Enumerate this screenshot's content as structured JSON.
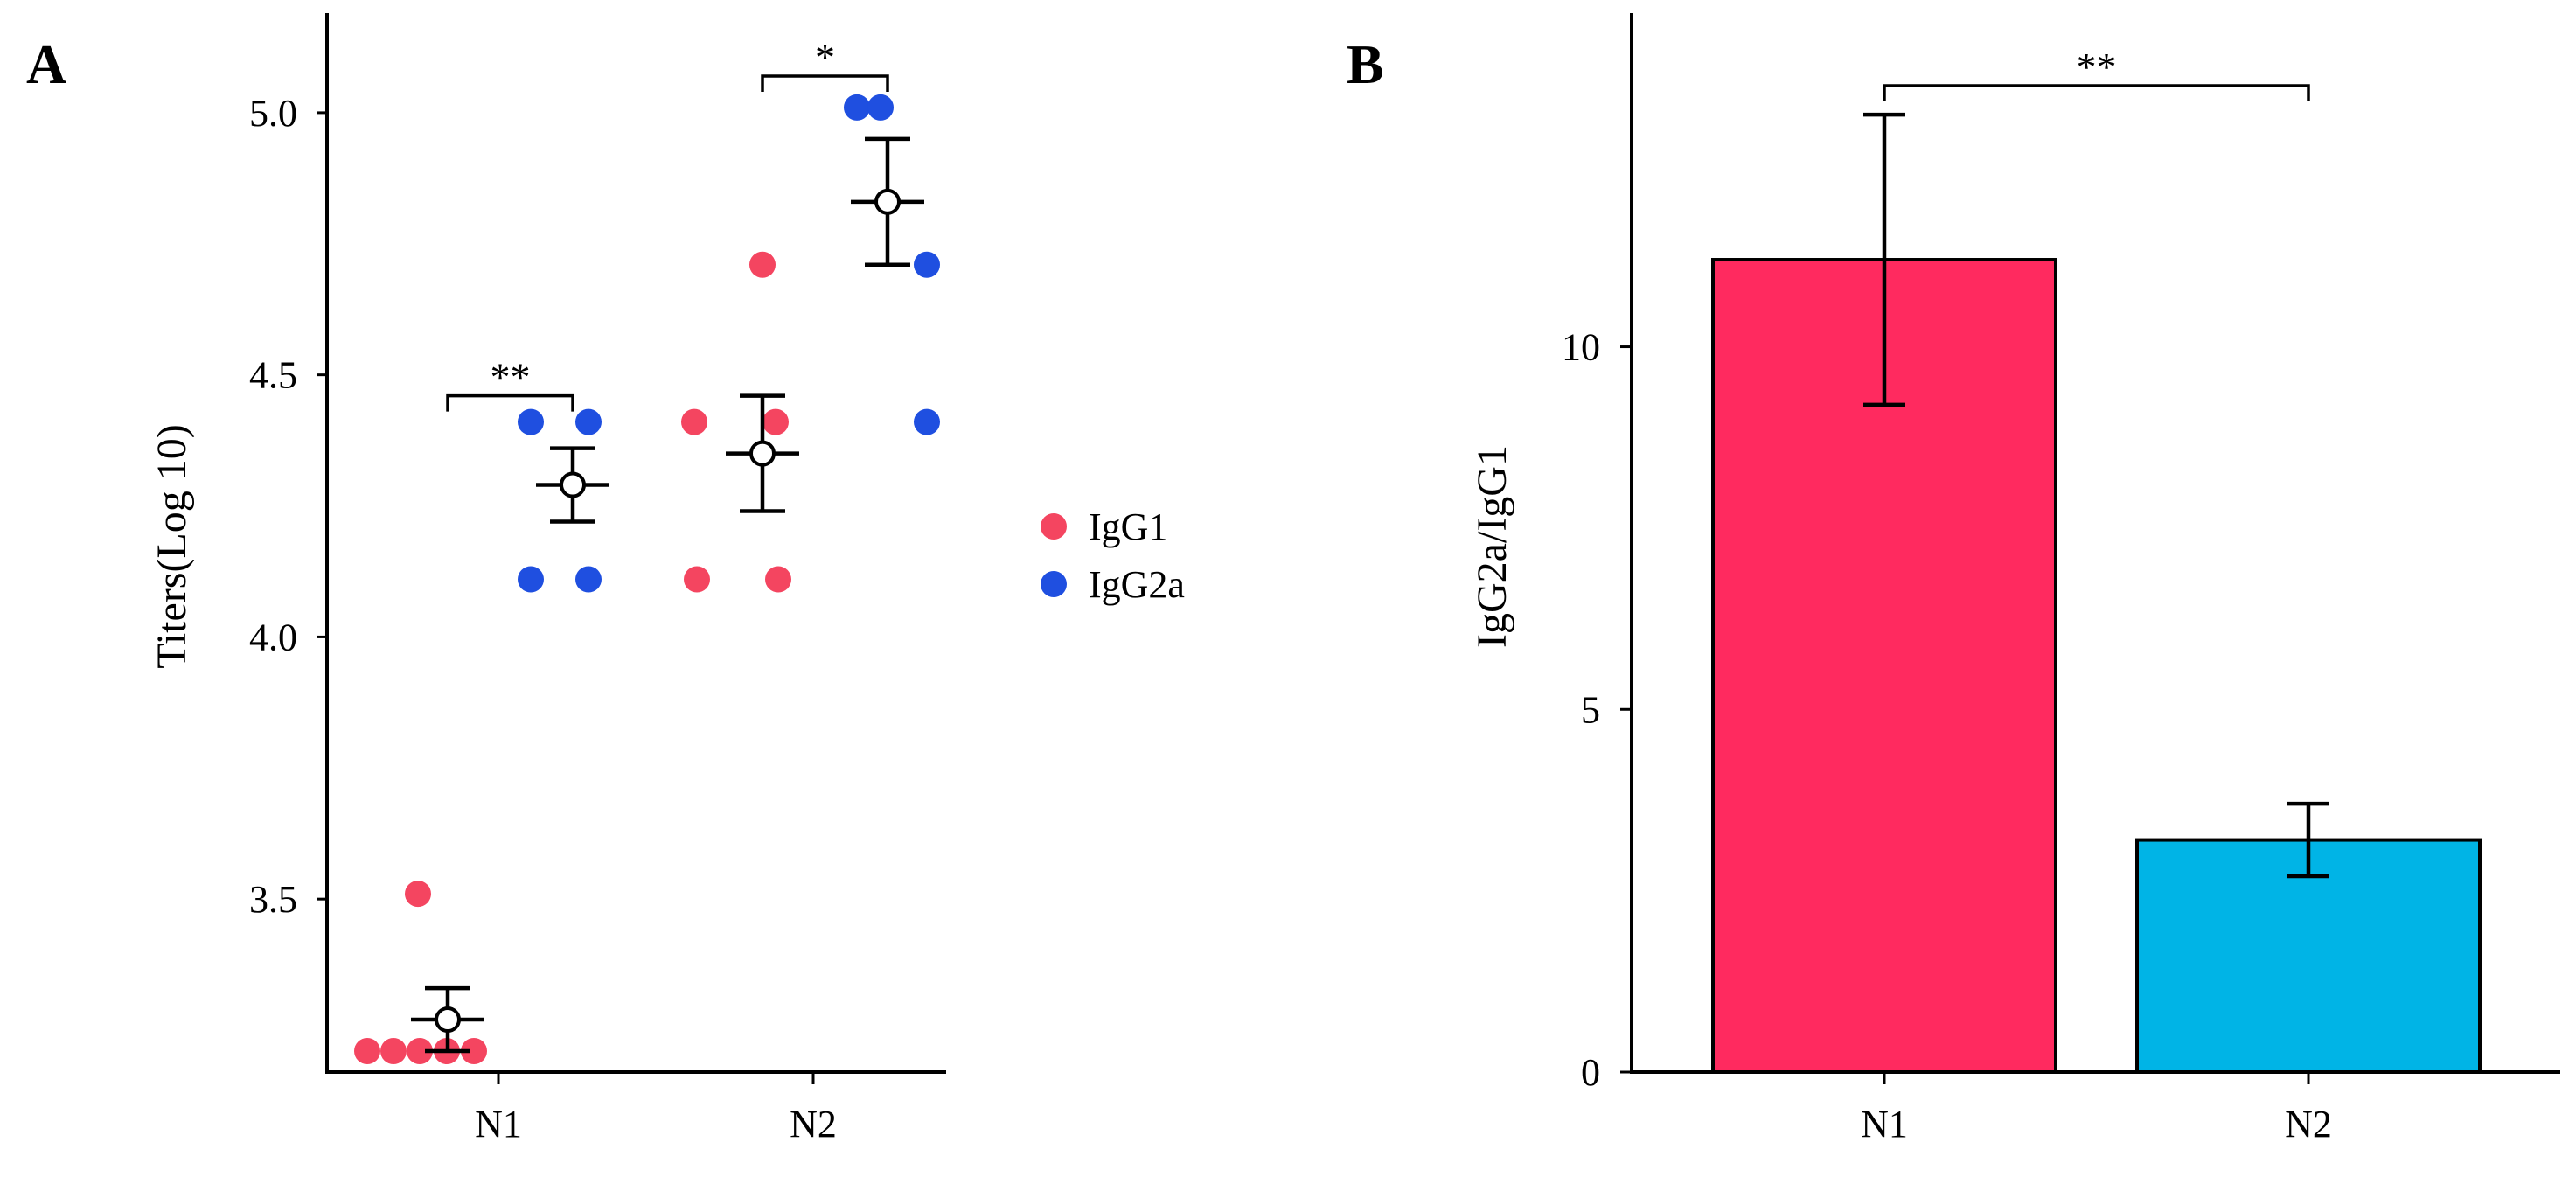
{
  "chart_data": [
    {
      "panel": "A",
      "type": "scatter",
      "ylabel": "Titers(Log 10)",
      "xlabel": "",
      "ylim": [
        3.17,
        5.19
      ],
      "yticks": [
        3.5,
        4.0,
        4.5,
        5.0
      ],
      "ytick_labels": [
        "3.5",
        "4.0",
        "4.5",
        "5.0"
      ],
      "categories": [
        "N1",
        "N2"
      ],
      "legend": {
        "placement": "right",
        "entries": [
          {
            "name": "IgG1",
            "color": "#f44560"
          },
          {
            "name": "IgG2a",
            "color": "#1f4fe0"
          }
        ]
      },
      "series": [
        {
          "name": "IgG1",
          "color": "#f44560",
          "points": {
            "N1": [
              3.21,
              3.21,
              3.21,
              3.21,
              3.21,
              3.51
            ],
            "N2": [
              4.11,
              4.11,
              4.41,
              4.41,
              4.71
            ]
          },
          "mean": {
            "N1": 3.27,
            "N2": 4.35
          },
          "error": {
            "N1": [
              3.21,
              3.33
            ],
            "N2": [
              4.24,
              4.46
            ]
          }
        },
        {
          "name": "IgG2a",
          "color": "#1f4fe0",
          "points": {
            "N1": [
              4.11,
              4.11,
              4.41,
              4.41
            ],
            "N2": [
              4.41,
              4.71,
              5.01,
              5.01
            ]
          },
          "mean": {
            "N1": 4.29,
            "N2": 4.83
          },
          "error": {
            "N1": [
              4.22,
              4.36
            ],
            "N2": [
              4.71,
              4.95
            ]
          }
        }
      ],
      "significance": [
        {
          "category": "N1",
          "label": "**",
          "y": 4.46
        },
        {
          "category": "N2",
          "label": "*",
          "y": 5.07
        }
      ]
    },
    {
      "panel": "B",
      "type": "bar",
      "ylabel": "IgG2a/IgG1",
      "xlabel": "",
      "ylim": [
        0,
        14.6
      ],
      "yticks": [
        0,
        5,
        10
      ],
      "ytick_labels": [
        "0",
        "5",
        "10"
      ],
      "categories": [
        "N1",
        "N2"
      ],
      "values": [
        11.2,
        3.2
      ],
      "errors": [
        [
          9.2,
          13.2
        ],
        [
          2.7,
          3.7
        ]
      ],
      "colors": [
        "#ff2a5f",
        "#00b4e6"
      ],
      "significance": [
        {
          "from": "N1",
          "to": "N2",
          "label": "**",
          "y": 13.6
        }
      ]
    }
  ]
}
